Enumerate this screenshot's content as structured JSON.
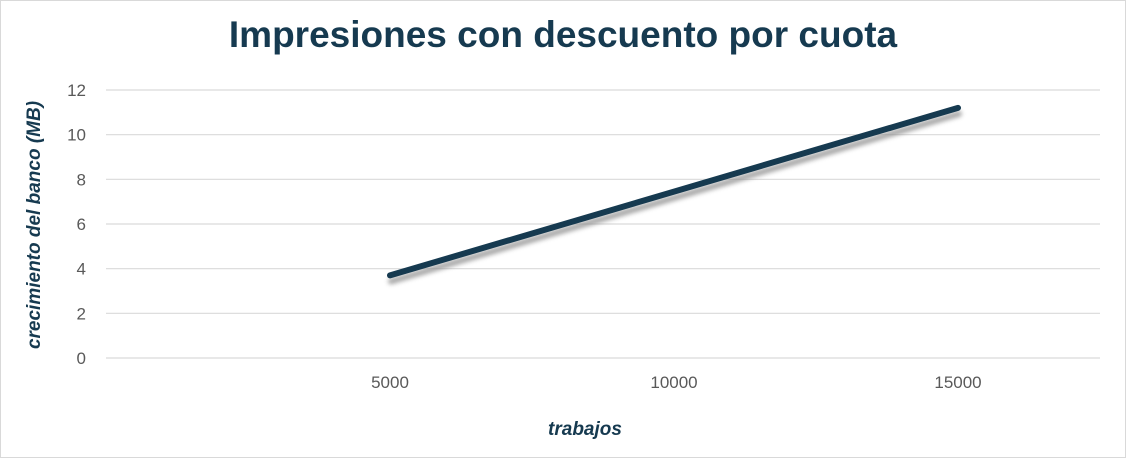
{
  "chart_data": {
    "type": "line",
    "title": "Impresiones con descuento por cuota",
    "xlabel": "trabajos",
    "ylabel": "crecimiento del banco (MB)",
    "x": [
      5000,
      15000
    ],
    "y": [
      3.7,
      11.2
    ],
    "x_ticks": [
      "5000",
      "10000",
      "15000"
    ],
    "x_tick_values": [
      5000,
      10000,
      15000
    ],
    "y_ticks": [
      "0",
      "2",
      "4",
      "6",
      "8",
      "10",
      "12"
    ],
    "y_tick_values": [
      0,
      2,
      4,
      6,
      8,
      10,
      12
    ],
    "xlim": [
      0,
      17500
    ],
    "ylim": [
      0,
      12
    ],
    "grid": "horizontal",
    "legend": "none",
    "colors": {
      "line": "#163a50",
      "title": "#163a50",
      "grid": "#d9d9d9",
      "tick": "#595959",
      "shadow": "#8c8c8c"
    }
  }
}
